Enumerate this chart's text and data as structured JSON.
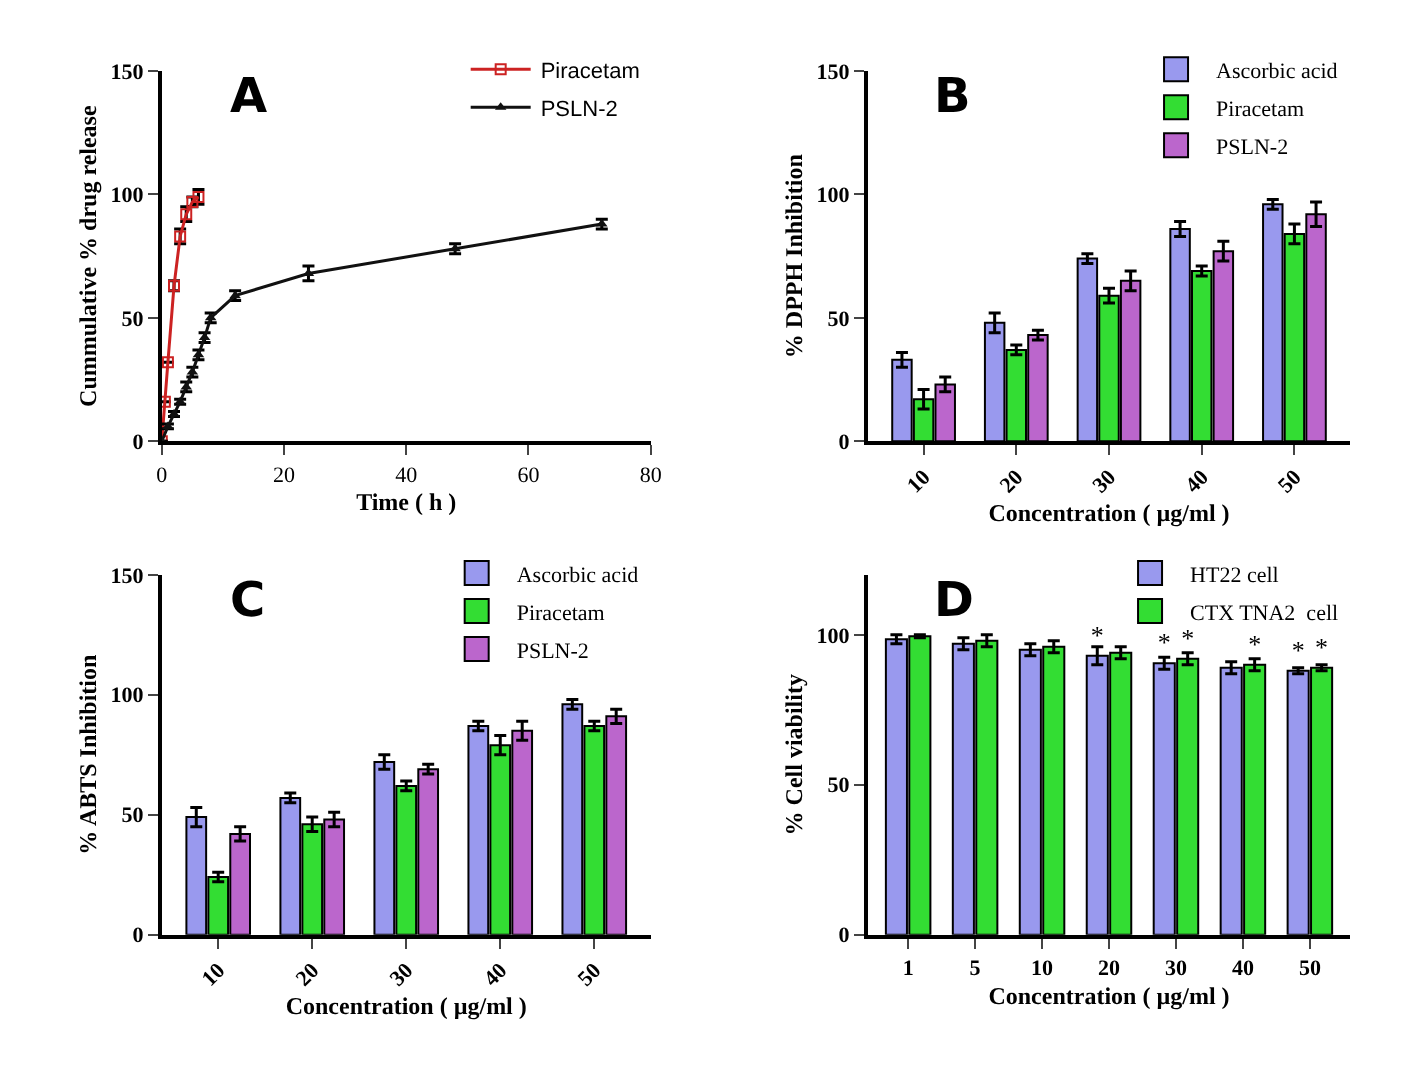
{
  "chart_data": [
    {
      "type": "line",
      "title": "A",
      "xlabel": "Time ( h )",
      "ylabel": "Cummulative % drug release",
      "xlim": [
        0,
        80
      ],
      "xticks": [
        0,
        20,
        40,
        60,
        80
      ],
      "ylim": [
        0,
        150
      ],
      "yticks": [
        0,
        50,
        100,
        150
      ],
      "legend": "top right",
      "series": [
        {
          "name": "Piracetam",
          "color": "#cc2222",
          "marker": "square",
          "x": [
            0,
            0.5,
            1,
            2,
            3,
            4,
            5,
            6
          ],
          "values": [
            0,
            16,
            32,
            63,
            83,
            92,
            97,
            99
          ],
          "errors": [
            null,
            null,
            null,
            2,
            3,
            3,
            2,
            3
          ]
        },
        {
          "name": "PSLN-2",
          "color": "#111111",
          "marker": "triangle",
          "x": [
            0,
            1,
            2,
            3,
            4,
            5,
            6,
            7,
            8,
            12,
            24,
            48,
            72
          ],
          "values": [
            0,
            6,
            11,
            16,
            22,
            28,
            35,
            42,
            50,
            59,
            68,
            78,
            88
          ],
          "errors": [
            null,
            1,
            1,
            1,
            2,
            2,
            2,
            2,
            2,
            2,
            3,
            2,
            2
          ]
        }
      ]
    },
    {
      "type": "bar",
      "title": "B",
      "xlabel": "Concentration ( µg/ml )",
      "ylabel": "% DPPH Inhibition",
      "categories": [
        "10",
        "20",
        "30",
        "40",
        "50"
      ],
      "ylim": [
        0,
        150
      ],
      "yticks": [
        0,
        50,
        100,
        150
      ],
      "legend": "top right",
      "series": [
        {
          "name": "Ascorbic acid",
          "color": "#9999ee",
          "values": [
            33,
            48,
            74,
            86,
            96
          ],
          "errors": [
            3,
            4,
            2,
            3,
            2
          ]
        },
        {
          "name": "Piracetam",
          "color": "#33dd33",
          "values": [
            17,
            37,
            59,
            69,
            84
          ],
          "errors": [
            4,
            2,
            3,
            2,
            4
          ]
        },
        {
          "name": "PSLN-2",
          "color": "#bb66cc",
          "values": [
            23,
            43,
            65,
            77,
            92
          ],
          "errors": [
            3,
            2,
            4,
            4,
            5
          ]
        }
      ]
    },
    {
      "type": "bar",
      "title": "C",
      "xlabel": "Concentration ( µg/ml )",
      "ylabel": "% ABTS Inhibition",
      "categories": [
        "10",
        "20",
        "30",
        "40",
        "50"
      ],
      "ylim": [
        0,
        150
      ],
      "yticks": [
        0,
        50,
        100,
        150
      ],
      "legend": "top right",
      "series": [
        {
          "name": "Ascorbic acid",
          "color": "#9999ee",
          "values": [
            49,
            57,
            72,
            87,
            96
          ],
          "errors": [
            4,
            2,
            3,
            2,
            2
          ]
        },
        {
          "name": "Piracetam",
          "color": "#33dd33",
          "values": [
            24,
            46,
            62,
            79,
            87
          ],
          "errors": [
            2,
            3,
            2,
            4,
            2
          ]
        },
        {
          "name": "PSLN-2",
          "color": "#bb66cc",
          "values": [
            42,
            48,
            69,
            85,
            91
          ],
          "errors": [
            3,
            3,
            2,
            4,
            3
          ]
        }
      ]
    },
    {
      "type": "bar",
      "title": "D",
      "xlabel": "Concentration ( µg/ml )",
      "ylabel": "% Cell viability",
      "categories": [
        "1",
        "5",
        "10",
        "20",
        "30",
        "40",
        "50"
      ],
      "ylim": [
        0,
        120
      ],
      "yticks": [
        0,
        50,
        100
      ],
      "legend": "top right",
      "series": [
        {
          "name": "HT22 cell",
          "color": "#9999ee",
          "values": [
            98.5,
            97,
            95,
            93,
            90.5,
            89,
            88
          ],
          "errors": [
            1.5,
            2,
            2,
            3,
            2,
            2,
            1
          ],
          "value_labels": [
            null,
            null,
            null,
            "*",
            "*",
            null,
            "*"
          ]
        },
        {
          "name": "CTX TNA2  cell",
          "color": "#33dd33",
          "values": [
            99.5,
            98,
            96,
            94,
            92,
            90,
            89
          ],
          "errors": [
            0.5,
            2,
            2,
            2,
            2,
            2,
            1
          ],
          "value_labels": [
            null,
            null,
            null,
            null,
            "*",
            "*",
            "*"
          ]
        }
      ]
    }
  ]
}
